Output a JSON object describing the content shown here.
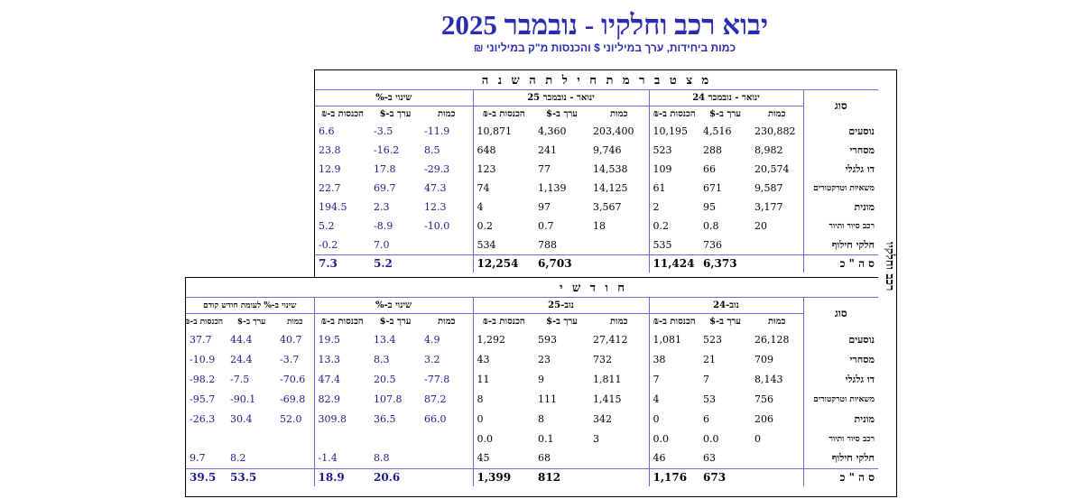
{
  "title": "יבוא רכב וחלקיו - נובמבר 2025",
  "subtitle": "כמות ביחידות, ערך במיליוני $ והכנסות מ\"ק במיליוני ₪",
  "side_label": "רכב וחלקיו",
  "annual": {
    "heading": "מ צ ט ב ר  מ ת ח י ל ת  ה ש נ ה",
    "type_label": "סוג",
    "groups": [
      "ינואר - נובמבר 24",
      "ינואר - נובמבר 25",
      "שינוי ב-%"
    ],
    "sub": [
      "כמות",
      "ערך ב-$",
      "הכנסות ב-₪"
    ],
    "rows": [
      {
        "label": "נוסעים",
        "v": [
          "230,882",
          "4,516",
          "10,195",
          "203,400",
          "4,360",
          "10,871",
          "-11.9",
          "-3.5",
          "6.6"
        ]
      },
      {
        "label": "מסחרי",
        "v": [
          "8,982",
          "288",
          "523",
          "9,746",
          "241",
          "648",
          "8.5",
          "-16.2",
          "23.8"
        ]
      },
      {
        "label": "דו גלגלי",
        "v": [
          "20,574",
          "66",
          "109",
          "14,538",
          "77",
          "123",
          "-29.3",
          "17.8",
          "12.9"
        ]
      },
      {
        "label": "משאיות וטרקטורים",
        "v": [
          "9,587",
          "671",
          "61",
          "14,125",
          "1,139",
          "74",
          "47.3",
          "69.7",
          "22.7"
        ]
      },
      {
        "label": "מונית",
        "v": [
          "3,177",
          "95",
          "2",
          "3,567",
          "97",
          "4",
          "12.3",
          "2.3",
          "194.5"
        ]
      },
      {
        "label": "רכב סיור ותיור",
        "v": [
          "20",
          "0.8",
          "0.2",
          "18",
          "0.7",
          "0.2",
          "-10.0",
          "-8.9",
          "5.2"
        ]
      },
      {
        "label": "חלקי חילוף",
        "v": [
          "",
          "736",
          "535",
          "",
          "788",
          "534",
          "",
          "7.0",
          "-0.2"
        ]
      }
    ],
    "total": {
      "label": "ס ה \" כ",
      "v": [
        "",
        "6,373",
        "11,424",
        "",
        "6,703",
        "12,254",
        "",
        "5.2",
        "7.3"
      ]
    }
  },
  "monthly": {
    "heading": "ח ו ד ש י",
    "type_label": "סוג",
    "groups": [
      "נוב-24",
      "נוב-25",
      "שינוי ב-%",
      "שינוי ב-% לעומת חודש קודם"
    ],
    "sub": [
      "כמות",
      "ערך ב-$",
      "הכנסות ב-₪"
    ],
    "sub_short": [
      "כמות",
      "ערך ב-$",
      "הכנסות ב-₪"
    ],
    "rows": [
      {
        "label": "נוסעים",
        "v": [
          "26,128",
          "523",
          "1,081",
          "27,412",
          "593",
          "1,292",
          "4.9",
          "13.4",
          "19.5",
          "40.7",
          "44.4",
          "37.7"
        ]
      },
      {
        "label": "מסחרי",
        "v": [
          "709",
          "21",
          "38",
          "732",
          "23",
          "43",
          "3.2",
          "8.3",
          "13.3",
          "-3.7",
          "24.4",
          "-10.9"
        ]
      },
      {
        "label": "דו גלגלי",
        "v": [
          "8,143",
          "7",
          "7",
          "1,811",
          "9",
          "11",
          "-77.8",
          "20.5",
          "47.4",
          "-70.6",
          "-7.5",
          "-98.2"
        ]
      },
      {
        "label": "משאיות וטרקטורים",
        "v": [
          "756",
          "53",
          "4",
          "1,415",
          "111",
          "8",
          "87.2",
          "107.8",
          "82.9",
          "-69.8",
          "-90.1",
          "-95.7"
        ]
      },
      {
        "label": "מונית",
        "v": [
          "206",
          "6",
          "0",
          "342",
          "8",
          "0",
          "66.0",
          "36.5",
          "309.8",
          "52.0",
          "30.4",
          "-26.3"
        ]
      },
      {
        "label": "רכב סיור ותיור",
        "v": [
          "0",
          "0.0",
          "0.0",
          "3",
          "0.1",
          "0.0",
          "",
          "",
          "",
          "",
          "",
          ""
        ]
      },
      {
        "label": "חלקי חילוף",
        "v": [
          "",
          "63",
          "46",
          "",
          "68",
          "45",
          "",
          "8.8",
          "-1.4",
          "",
          "8.2",
          "9.7"
        ]
      }
    ],
    "total": {
      "label": "ס ה \" כ",
      "v": [
        "",
        "673",
        "1,176",
        "",
        "812",
        "1,399",
        "",
        "20.6",
        "18.9",
        "",
        "53.5",
        "39.5"
      ]
    }
  }
}
